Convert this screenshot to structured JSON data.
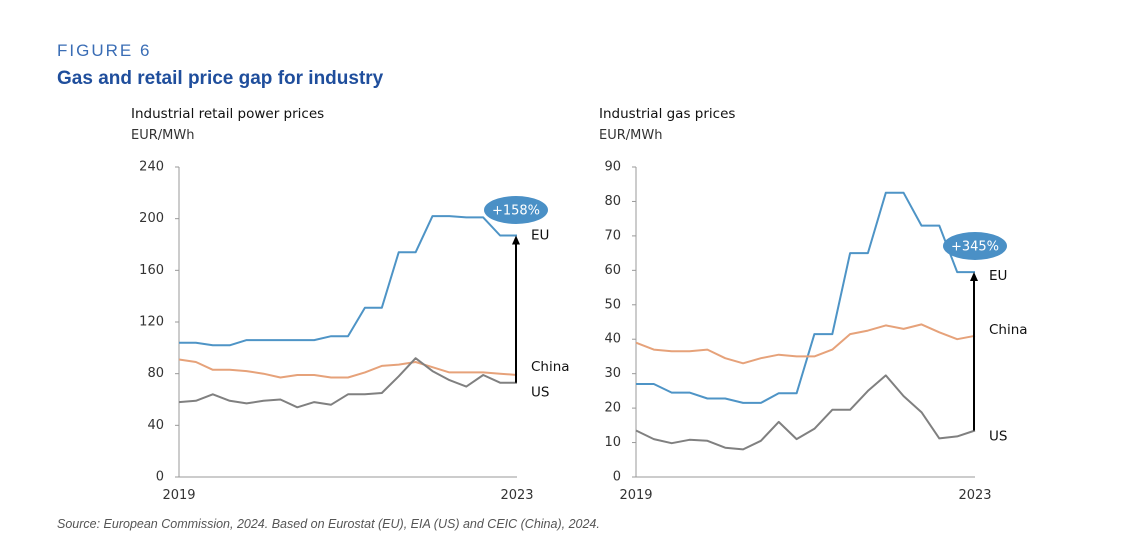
{
  "figure": {
    "label": "FIGURE 6",
    "title": "Gas and retail price gap for industry",
    "source": "Source: European Commission, 2024. Based on Eurostat (EU), EIA (US) and CEIC (China), 2024."
  },
  "colors": {
    "EU": "#4e94c6",
    "China": "#e6a27a",
    "US": "#808080",
    "badge": "#4a90c6",
    "axis": "#999999"
  },
  "chart_data": [
    {
      "type": "line",
      "title": "Industrial retail power prices",
      "ylabel": "EUR/MWh",
      "ylim": [
        0,
        240
      ],
      "yticks": [
        0,
        40,
        80,
        120,
        160,
        200,
        240
      ],
      "x_start_label": "2019",
      "x_end_label": "2023",
      "series": [
        {
          "name": "EU",
          "label": "EU",
          "values": [
            104,
            104,
            102,
            102,
            106,
            106,
            106,
            106,
            106,
            109,
            109,
            131,
            131,
            174,
            174,
            202,
            202,
            201,
            201,
            187,
            187
          ]
        },
        {
          "name": "China",
          "label": "China",
          "values": [
            91,
            89,
            83,
            83,
            82,
            80,
            77,
            79,
            79,
            77,
            77,
            81,
            86,
            87,
            89,
            85,
            81,
            81,
            81,
            80,
            79
          ]
        },
        {
          "name": "US",
          "label": "US",
          "values": [
            58,
            59,
            64,
            59,
            57,
            59,
            60,
            54,
            58,
            56,
            64,
            64,
            65,
            78,
            92,
            82,
            75,
            70,
            79,
            73,
            73
          ]
        }
      ],
      "annotation": {
        "text": "+158%",
        "from_series": "US",
        "to_series": "EU"
      }
    },
    {
      "type": "line",
      "title": "Industrial gas prices",
      "ylabel": "EUR/MWh",
      "ylim": [
        0,
        90
      ],
      "yticks": [
        0,
        10,
        20,
        30,
        40,
        50,
        60,
        70,
        80,
        90
      ],
      "x_start_label": "2019",
      "x_end_label": "2023",
      "series": [
        {
          "name": "EU",
          "label": "EU",
          "values": [
            27,
            27,
            24.5,
            24.5,
            22.8,
            22.8,
            21.5,
            21.5,
            24.3,
            24.3,
            41.5,
            41.5,
            65,
            65,
            82.5,
            82.5,
            73,
            73,
            59.5,
            59.5
          ]
        },
        {
          "name": "China",
          "label": "China",
          "values": [
            39,
            37,
            36.5,
            36.5,
            37,
            34.5,
            33,
            34.5,
            35.5,
            35,
            35,
            37,
            41.5,
            42.5,
            44,
            43,
            44.3,
            42,
            40,
            41
          ]
        },
        {
          "name": "US",
          "label": "US",
          "values": [
            13.5,
            11,
            9.8,
            10.8,
            10.5,
            8.5,
            8,
            10.5,
            16,
            11,
            14,
            19.5,
            19.5,
            25,
            29.5,
            23.5,
            18.8,
            11.2,
            11.8,
            13.5
          ]
        }
      ],
      "annotation": {
        "text": "+345%",
        "from_series": "US",
        "to_series": "EU"
      }
    }
  ]
}
